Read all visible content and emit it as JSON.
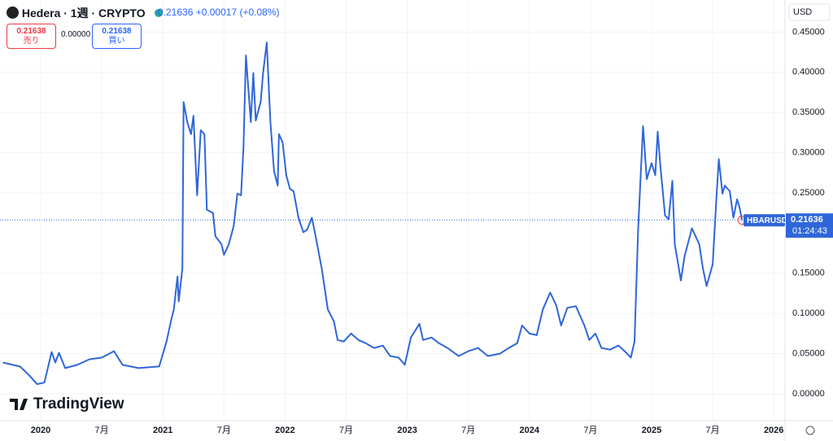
{
  "header": {
    "symbol": "Hedera · 1週 · CRYPTO",
    "change": "+0.00017 (+0.08%)",
    "sell_price": "0.21638",
    "sell_label": "売り",
    "spread": "0.00000",
    "buy_price": "0.21638",
    "buy_label": "買い",
    "currency": "USD",
    "ticker": "HBARUSD",
    "countdown": "01:24:43",
    "logo": "TradingView"
  },
  "chart_data": {
    "type": "line",
    "color": "#2f66d9",
    "last_price": 0.21636,
    "xlim": [
      2019.667,
      2026.092
    ],
    "ylim": [
      -0.0334,
      0.4899
    ],
    "xticks": [
      2020,
      {
        "value": 2020.5,
        "label": "7月"
      },
      2021,
      {
        "value": 2021.5,
        "label": "7月"
      },
      2022,
      {
        "value": 2022.5,
        "label": "7月"
      },
      2023,
      {
        "value": 2023.5,
        "label": "7月"
      },
      2024,
      {
        "value": 2024.5,
        "label": "7月"
      },
      2025,
      {
        "value": 2025.5,
        "label": "7月"
      },
      2026
    ],
    "yticks": [
      {
        "value": 0,
        "label": "0.00000"
      },
      {
        "value": 0.05,
        "label": "0.05000"
      },
      {
        "value": 0.1,
        "label": "0.10000"
      },
      {
        "value": 0.15,
        "label": "0.15000"
      },
      {
        "value": 0.25,
        "label": "0.25000"
      },
      {
        "value": 0.3,
        "label": "0.30000"
      },
      {
        "value": 0.35,
        "label": "0.35000"
      },
      {
        "value": 0.4,
        "label": "0.40000"
      },
      {
        "value": 0.45,
        "label": "0.45000"
      }
    ],
    "grid": true,
    "series": [
      {
        "name": "HBARUSD",
        "color": "#2f66d9",
        "x": [
          2019.69,
          2019.77,
          2019.83,
          2019.9,
          2019.97,
          2020.03,
          2020.09,
          2020.12,
          2020.15,
          2020.2,
          2020.3,
          2020.4,
          2020.5,
          2020.6,
          2020.67,
          2020.8,
          2020.97,
          2021.03,
          2021.07,
          2021.09,
          2021.12,
          2021.13,
          2021.16,
          2021.17,
          2021.2,
          2021.23,
          2021.25,
          2021.28,
          2021.31,
          2021.34,
          2021.36,
          2021.41,
          2021.43,
          2021.48,
          2021.5,
          2021.54,
          2021.58,
          2021.61,
          2021.64,
          2021.66,
          2021.68,
          2021.72,
          2021.74,
          2021.76,
          2021.8,
          2021.82,
          2021.85,
          2021.88,
          2021.91,
          2021.94,
          2021.95,
          2021.98,
          2022.01,
          2022.04,
          2022.07,
          2022.11,
          2022.15,
          2022.18,
          2022.22,
          2022.25,
          2022.3,
          2022.35,
          2022.4,
          2022.43,
          2022.48,
          2022.54,
          2022.6,
          2022.66,
          2022.73,
          2022.8,
          2022.86,
          2022.93,
          2022.98,
          2023.03,
          2023.1,
          2023.13,
          2023.2,
          2023.26,
          2023.33,
          2023.42,
          2023.5,
          2023.58,
          2023.66,
          2023.76,
          2023.83,
          2023.9,
          2023.94,
          2024.0,
          2024.06,
          2024.11,
          2024.17,
          2024.22,
          2024.26,
          2024.31,
          2024.38,
          2024.45,
          2024.49,
          2024.54,
          2024.59,
          2024.66,
          2024.73,
          2024.78,
          2024.83,
          2024.86,
          2024.89,
          2024.93,
          2024.96,
          2025.0,
          2025.03,
          2025.05,
          2025.07,
          2025.11,
          2025.14,
          2025.17,
          2025.19,
          2025.24,
          2025.27,
          2025.33,
          2025.39,
          2025.42,
          2025.45,
          2025.5,
          2025.53,
          2025.55,
          2025.58,
          2025.6,
          2025.64,
          2025.67,
          2025.7,
          2025.72,
          2025.74
        ],
        "values": [
          0.039,
          0.036,
          0.034,
          0.024,
          0.012,
          0.014,
          0.052,
          0.039,
          0.051,
          0.032,
          0.036,
          0.043,
          0.045,
          0.053,
          0.036,
          0.032,
          0.034,
          0.065,
          0.093,
          0.105,
          0.146,
          0.115,
          0.156,
          0.363,
          0.338,
          0.323,
          0.346,
          0.247,
          0.328,
          0.323,
          0.229,
          0.225,
          0.196,
          0.186,
          0.173,
          0.186,
          0.209,
          0.249,
          0.247,
          0.306,
          0.421,
          0.338,
          0.399,
          0.34,
          0.363,
          0.399,
          0.437,
          0.338,
          0.277,
          0.259,
          0.323,
          0.313,
          0.272,
          0.255,
          0.252,
          0.219,
          0.201,
          0.204,
          0.219,
          0.196,
          0.156,
          0.105,
          0.09,
          0.067,
          0.065,
          0.075,
          0.067,
          0.063,
          0.057,
          0.06,
          0.047,
          0.045,
          0.036,
          0.07,
          0.087,
          0.067,
          0.07,
          0.063,
          0.057,
          0.047,
          0.053,
          0.057,
          0.047,
          0.05,
          0.057,
          0.063,
          0.085,
          0.075,
          0.073,
          0.105,
          0.126,
          0.11,
          0.085,
          0.107,
          0.109,
          0.085,
          0.067,
          0.075,
          0.057,
          0.055,
          0.06,
          0.053,
          0.045,
          0.065,
          0.206,
          0.333,
          0.267,
          0.287,
          0.272,
          0.326,
          0.287,
          0.222,
          0.217,
          0.265,
          0.186,
          0.141,
          0.171,
          0.206,
          0.186,
          0.156,
          0.134,
          0.161,
          0.242,
          0.292,
          0.249,
          0.259,
          0.252,
          0.219,
          0.242,
          0.232,
          0.216
        ]
      }
    ]
  }
}
